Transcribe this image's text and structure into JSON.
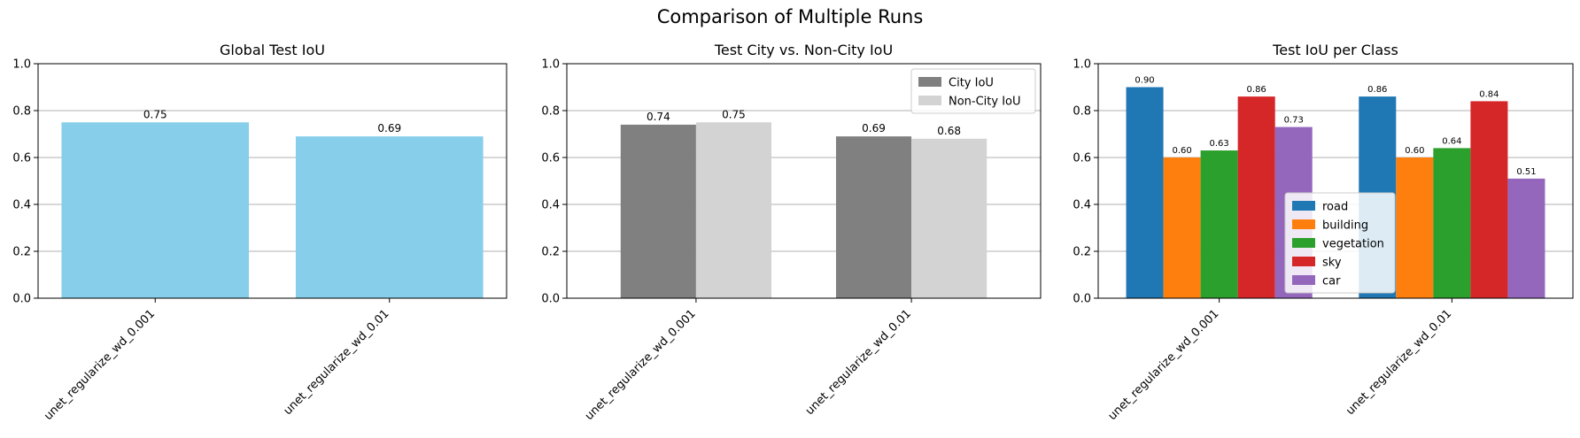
{
  "figure": {
    "title": "Comparison of Multiple Runs"
  },
  "chart_data": [
    {
      "type": "bar",
      "title": "Global Test IoU",
      "xlabel": "",
      "ylabel": "",
      "categories": [
        "unet_regularize_wd_0.001",
        "unet_regularize_wd_0.01"
      ],
      "series": [
        {
          "values": [
            0.75,
            0.69
          ],
          "color": "#87CEEB"
        }
      ],
      "value_labels": [
        [
          "0.75",
          "0.69"
        ]
      ],
      "ylim": [
        0,
        1.0
      ],
      "yticks": [
        "0.0",
        "0.2",
        "0.4",
        "0.6",
        "0.8",
        "1.0"
      ],
      "grid": "y",
      "legend": null
    },
    {
      "type": "bar",
      "title": "Test City vs. Non-City IoU",
      "xlabel": "",
      "ylabel": "",
      "categories": [
        "unet_regularize_wd_0.001",
        "unet_regularize_wd_0.01"
      ],
      "series": [
        {
          "name": "City IoU",
          "values": [
            0.74,
            0.69
          ],
          "color": "#808080"
        },
        {
          "name": "Non-City IoU",
          "values": [
            0.75,
            0.68
          ],
          "color": "#D3D3D3"
        }
      ],
      "value_labels": [
        [
          "0.74",
          "0.69"
        ],
        [
          "0.75",
          "0.68"
        ]
      ],
      "ylim": [
        0,
        1.0
      ],
      "yticks": [
        "0.0",
        "0.2",
        "0.4",
        "0.6",
        "0.8",
        "1.0"
      ],
      "grid": "y",
      "legend": "top-right"
    },
    {
      "type": "bar",
      "title": "Test IoU per Class",
      "xlabel": "",
      "ylabel": "",
      "categories": [
        "unet_regularize_wd_0.001",
        "unet_regularize_wd_0.01"
      ],
      "series": [
        {
          "name": "road",
          "values": [
            0.9,
            0.86
          ],
          "color": "#1f77b4"
        },
        {
          "name": "building",
          "values": [
            0.6,
            0.6
          ],
          "color": "#ff7f0e"
        },
        {
          "name": "vegetation",
          "values": [
            0.63,
            0.64
          ],
          "color": "#2ca02c"
        },
        {
          "name": "sky",
          "values": [
            0.86,
            0.84
          ],
          "color": "#d62728"
        },
        {
          "name": "car",
          "values": [
            0.73,
            0.51
          ],
          "color": "#9467bd"
        }
      ],
      "value_labels": [
        [
          "0.90",
          "0.86"
        ],
        [
          "0.60",
          "0.60"
        ],
        [
          "0.63",
          "0.64"
        ],
        [
          "0.86",
          "0.84"
        ],
        [
          "0.73",
          "0.51"
        ]
      ],
      "ylim": [
        0,
        1.0
      ],
      "yticks": [
        "0.0",
        "0.2",
        "0.4",
        "0.6",
        "0.8",
        "1.0"
      ],
      "grid": "y",
      "legend": "lower-center"
    }
  ]
}
